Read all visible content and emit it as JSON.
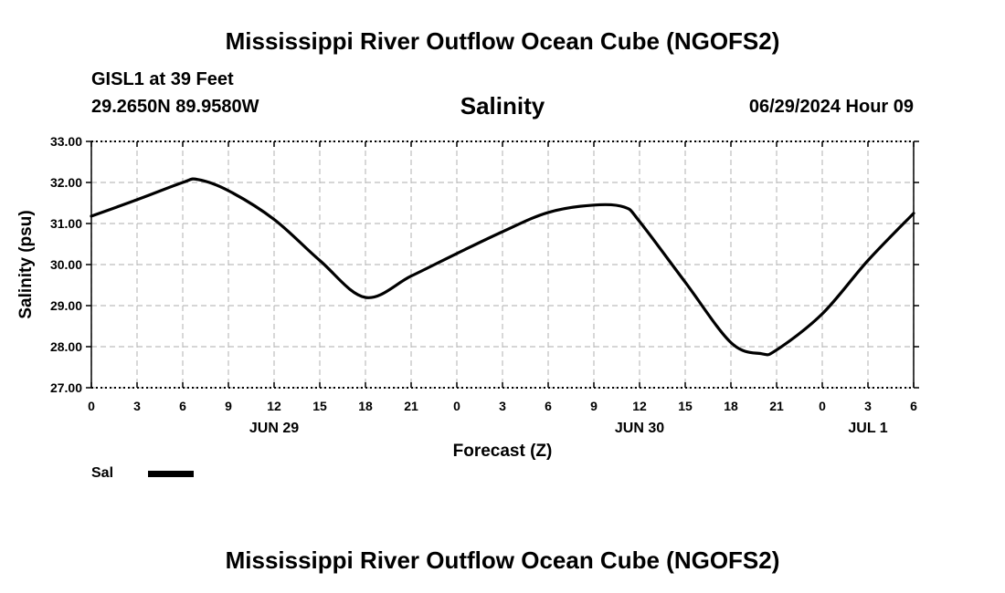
{
  "header": {
    "title": "Mississippi River Outflow Ocean Cube (NGOFS2)",
    "station": "GISL1 at 39 Feet",
    "coords": "29.2650N  89.9580W",
    "chart_title": "Salinity",
    "datetime": "06/29/2024 Hour 09"
  },
  "footer": {
    "title": "Mississippi River Outflow Ocean Cube (NGOFS2)"
  },
  "legend": {
    "label": "Sal"
  },
  "chart_data": {
    "type": "line",
    "title": "Salinity",
    "xlabel": "Forecast (Z)",
    "ylabel": "Salinity (psu)",
    "ylim": [
      27,
      33
    ],
    "yticks": [
      "27.00",
      "28.00",
      "29.00",
      "30.00",
      "31.00",
      "32.00",
      "33.00"
    ],
    "xlim": [
      0,
      54
    ],
    "xticks": [
      "0",
      "3",
      "6",
      "9",
      "12",
      "15",
      "18",
      "21",
      "0",
      "3",
      "6",
      "9",
      "12",
      "15",
      "18",
      "21",
      "0",
      "3",
      "6"
    ],
    "dates": [
      {
        "label": "JUN 29",
        "at_hour": 12
      },
      {
        "label": "JUN 30",
        "at_hour": 36
      },
      {
        "label": "JUL 1",
        "at_hour": 51
      }
    ],
    "grid": true,
    "line_color": "#000000",
    "series": [
      {
        "name": "Sal",
        "x": [
          0,
          3,
          6,
          7,
          9,
          12,
          15,
          18,
          21,
          24,
          27,
          30,
          33,
          35,
          36,
          39,
          42,
          44,
          45,
          48,
          51,
          54
        ],
        "values": [
          31.18,
          31.58,
          32.0,
          32.07,
          31.8,
          31.1,
          30.1,
          29.2,
          29.72,
          30.27,
          30.8,
          31.27,
          31.45,
          31.4,
          31.05,
          29.57,
          28.1,
          27.83,
          27.92,
          28.8,
          30.1,
          31.25
        ]
      }
    ]
  }
}
